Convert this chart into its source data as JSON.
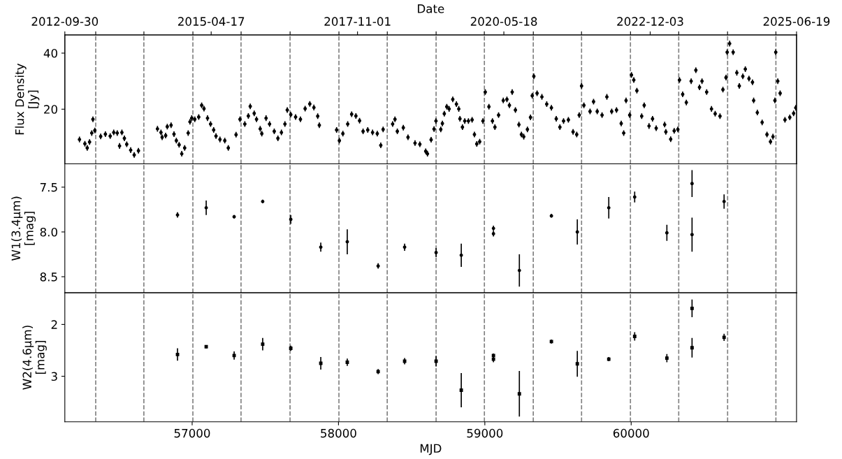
{
  "chart_data": [
    {
      "type": "scatter",
      "ylabel": "Flux Density\n[Jy]",
      "x2label": "Date",
      "marker": "circle",
      "tick_labels": "y",
      "xlim": [
        56130,
        61130
      ],
      "xticks": [
        57000,
        58000,
        59000,
        60000
      ],
      "x2lim": [
        "2012-09-30",
        "2025-06-19"
      ],
      "x2ticks": [
        {
          "value": "2012-09-30",
          "label": "2012-09-30"
        },
        {
          "value": "2013-04-14",
          "label": null
        },
        {
          "value": "2014-02-14",
          "label": null
        },
        {
          "value": "2014-12-22",
          "label": null
        },
        {
          "value": "2015-04-17",
          "label": "2015-04-17"
        },
        {
          "value": "2015-10-24",
          "label": null
        },
        {
          "value": "2016-08-30",
          "label": null
        },
        {
          "value": "2017-07-06",
          "label": null
        },
        {
          "value": "2017-11-01",
          "label": "2017-11-01"
        },
        {
          "value": "2018-05-09",
          "label": null
        },
        {
          "value": "2019-03-15",
          "label": null
        },
        {
          "value": "2020-01-15",
          "label": null
        },
        {
          "value": "2020-05-18",
          "label": "2020-05-18"
        },
        {
          "value": "2020-11-21",
          "label": null
        },
        {
          "value": "2021-09-23",
          "label": null
        },
        {
          "value": "2022-07-31",
          "label": null
        },
        {
          "value": "2022-12-03",
          "label": "2022-12-03"
        },
        {
          "value": "2023-06-02",
          "label": null
        },
        {
          "value": "2024-04-07",
          "label": null
        },
        {
          "value": "2025-02-08",
          "label": null
        },
        {
          "value": "2025-06-19",
          "label": "2025-06-19"
        }
      ],
      "ylim": [
        0.5,
        46.5
      ],
      "yticks": [
        20,
        40
      ],
      "ref_lines": [
        {
          "axis": "x",
          "value": 56341,
          "color": "#808080",
          "line_style": "dashed"
        },
        {
          "axis": "x",
          "value": 56670,
          "color": "#808080",
          "line_style": "dashed"
        },
        {
          "axis": "x",
          "value": 57005,
          "color": "#808080",
          "line_style": "dashed"
        },
        {
          "axis": "x",
          "value": 57334,
          "color": "#808080",
          "line_style": "dashed"
        },
        {
          "axis": "x",
          "value": 57669,
          "color": "#808080",
          "line_style": "dashed"
        },
        {
          "axis": "x",
          "value": 58003,
          "color": "#808080",
          "line_style": "dashed"
        },
        {
          "axis": "x",
          "value": 58333,
          "color": "#808080",
          "line_style": "dashed"
        },
        {
          "axis": "x",
          "value": 58667,
          "color": "#808080",
          "line_style": "dashed"
        },
        {
          "axis": "x",
          "value": 58997,
          "color": "#808080",
          "line_style": "dashed"
        },
        {
          "axis": "x",
          "value": 59331,
          "color": "#808080",
          "line_style": "dashed"
        },
        {
          "axis": "x",
          "value": 59661,
          "color": "#808080",
          "line_style": "dashed"
        },
        {
          "axis": "x",
          "value": 59995,
          "color": "#808080",
          "line_style": "dashed"
        },
        {
          "axis": "x",
          "value": 60325,
          "color": "#808080",
          "line_style": "dashed"
        },
        {
          "axis": "x",
          "value": 60659,
          "color": "#808080",
          "line_style": "dashed"
        },
        {
          "axis": "x",
          "value": 60989,
          "color": "#808080",
          "line_style": "dashed"
        }
      ],
      "series": [
        {
          "color": "#000000",
          "x": [
            56230,
            56267,
            56283,
            56299,
            56314,
            56322,
            56335,
            56375,
            56407,
            56440,
            56464,
            56488,
            56504,
            56520,
            56537,
            56553,
            56580,
            56604,
            56633,
            56763,
            56787,
            56795,
            56819,
            56830,
            56856,
            56876,
            56892,
            56911,
            56929,
            56949,
            56973,
            56985,
            56997,
            57018,
            57045,
            57065,
            57081,
            57105,
            57126,
            57147,
            57163,
            57190,
            57223,
            57247,
            57300,
            57327,
            57360,
            57384,
            57397,
            57424,
            57440,
            57465,
            57476,
            57505,
            57529,
            57561,
            57586,
            57610,
            57634,
            57650,
            57674,
            57707,
            57740,
            57772,
            57804,
            57832,
            57858,
            57869,
            57987,
            58006,
            58030,
            58063,
            58090,
            58119,
            58144,
            58168,
            58200,
            58233,
            58265,
            58289,
            58305,
            58370,
            58386,
            58402,
            58443,
            58475,
            58523,
            58556,
            58596,
            58608,
            58633,
            58653,
            58666,
            58699,
            58710,
            58723,
            58740,
            58756,
            58781,
            58806,
            58822,
            58830,
            58847,
            58863,
            58888,
            58913,
            58929,
            58945,
            58965,
            58987,
            59003,
            59028,
            59052,
            59069,
            59094,
            59126,
            59151,
            59168,
            59187,
            59209,
            59233,
            59250,
            59266,
            59291,
            59312,
            59324,
            59335,
            59357,
            59390,
            59423,
            59455,
            59488,
            59513,
            59538,
            59571,
            59603,
            59628,
            59645,
            59661,
            59677,
            59719,
            59743,
            59768,
            59801,
            59834,
            59867,
            59900,
            59932,
            59949,
            59965,
            59990,
            60002,
            60018,
            60039,
            60072,
            60089,
            60122,
            60146,
            60171,
            60229,
            60237,
            60270,
            60294,
            60319,
            60330,
            60352,
            60377,
            60410,
            60442,
            60467,
            60484,
            60516,
            60549,
            60574,
            60607,
            60627,
            60648,
            60656,
            60673,
            60697,
            60722,
            60739,
            60763,
            60780,
            60805,
            60829,
            60837,
            60862,
            60895,
            60928,
            60952,
            60969,
            60982,
            60988,
            61002,
            61018,
            61051,
            61084,
            61110,
            61125
          ],
          "values": [
            9.2,
            7.7,
            6.2,
            8.3,
            11.5,
            16.4,
            12.4,
            10.3,
            11.1,
            10.4,
            11.7,
            11.5,
            6.9,
            11.7,
            9.6,
            7.5,
            5.4,
            3.7,
            5.2,
            13,
            11.7,
            10,
            10.6,
            13.8,
            14.3,
            11.1,
            8.8,
            7.3,
            4.1,
            6.2,
            11.5,
            15.5,
            16.8,
            16.4,
            17.2,
            21.4,
            20.2,
            16.8,
            14.7,
            12.6,
            10.4,
            9.2,
            8.8,
            6.2,
            10.9,
            16.4,
            14.7,
            17.6,
            21,
            18.5,
            16.4,
            13,
            11.3,
            16.8,
            14.7,
            12.1,
            9.6,
            11.7,
            14.7,
            19.7,
            18.1,
            17.2,
            16.4,
            20.2,
            21.9,
            20.6,
            17.5,
            14.3,
            12.6,
            8.8,
            11.3,
            14.7,
            18.2,
            17.6,
            15.9,
            12.1,
            12.6,
            11.7,
            11.3,
            7.1,
            12.8,
            14.7,
            16.4,
            12.1,
            13.4,
            10,
            7.9,
            7.5,
            5,
            4.1,
            9.1,
            12.9,
            15.8,
            12.8,
            14.9,
            18.4,
            20.9,
            20.1,
            23.5,
            21.8,
            20.1,
            16.6,
            13.6,
            15.8,
            15.8,
            16.2,
            11,
            7.6,
            8.4,
            15.8,
            26.1,
            20.9,
            15.8,
            13.6,
            17.9,
            23.1,
            23.5,
            21.4,
            26.1,
            19.7,
            14.5,
            11,
            10.2,
            12.8,
            17.1,
            24.8,
            31.7,
            25.7,
            24.4,
            21.8,
            20.5,
            16.6,
            13.6,
            15.8,
            16.2,
            11.9,
            11,
            17.9,
            28.3,
            21.4,
            19.2,
            22.7,
            19.2,
            17.9,
            24.4,
            19.2,
            19.7,
            14.9,
            11.5,
            23.1,
            17.9,
            32.2,
            30.4,
            26.6,
            17.5,
            21.4,
            14,
            16.6,
            13.2,
            14.5,
            11.9,
            9.3,
            12.3,
            12.8,
            30.4,
            25.3,
            22.4,
            30,
            33.9,
            27.8,
            30,
            26.1,
            20.1,
            18.4,
            17.5,
            27,
            31.3,
            40.3,
            43.4,
            40.3,
            33,
            28.3,
            31.7,
            34.3,
            30.9,
            29.6,
            23.1,
            18.8,
            15.3,
            11,
            8.4,
            10.2,
            23.1,
            40.3,
            30,
            25.7,
            16.2,
            17.1,
            18.5,
            20.5
          ],
          "errors": [
            1,
            1,
            1,
            1,
            1,
            1,
            1,
            1,
            1,
            1,
            1,
            1,
            1,
            1,
            1,
            1,
            1,
            1,
            1,
            1,
            1,
            1,
            1,
            1,
            1,
            1,
            1,
            1,
            1,
            1,
            1,
            1,
            1,
            1,
            1,
            1,
            1,
            1,
            1,
            1,
            1,
            1,
            1,
            1,
            1,
            1,
            1,
            1,
            1,
            1,
            1,
            1,
            1,
            1,
            1,
            1,
            1,
            1,
            1,
            1,
            1,
            1,
            1,
            1,
            1,
            1,
            1,
            1,
            1,
            1,
            1,
            1,
            1,
            1,
            1,
            1,
            1,
            1,
            1,
            1,
            1,
            1,
            1,
            1,
            1,
            1,
            1,
            1,
            1,
            1,
            1,
            1,
            1,
            1,
            1,
            1,
            1,
            1,
            1,
            1,
            1,
            1,
            1,
            1,
            1,
            1,
            1,
            1,
            1,
            1,
            1,
            1,
            1,
            1,
            1,
            1,
            1,
            1,
            1,
            1,
            1,
            1,
            1,
            1,
            1,
            1,
            1,
            1,
            1,
            1,
            1,
            1,
            1,
            1,
            1,
            1,
            1,
            1,
            1,
            1,
            1,
            1,
            1,
            1,
            1,
            1,
            1,
            1,
            1,
            1,
            1,
            1,
            1,
            1,
            1,
            1,
            1,
            1,
            1,
            1,
            1,
            1,
            1,
            1,
            1,
            1,
            1,
            1,
            1,
            1,
            1,
            1,
            1,
            1,
            1,
            1,
            1,
            1,
            1,
            1,
            1,
            1,
            1,
            1,
            1,
            1,
            1,
            1,
            1,
            1,
            1,
            1,
            1,
            1,
            1,
            1,
            1,
            1,
            1,
            1
          ]
        }
      ]
    },
    {
      "type": "scatter",
      "ylabel": "W1(3.4μm)\n[mag]",
      "marker": "circle",
      "tick_labels": "y",
      "xlim": [
        56130,
        61130
      ],
      "xticks": [
        57000,
        58000,
        59000,
        60000
      ],
      "ylim": [
        8.68,
        7.24
      ],
      "yticks": [
        {
          "value": 7.5,
          "label": "7.5"
        },
        {
          "value": 8.0,
          "label": "8.0"
        },
        {
          "value": 8.5,
          "label": "8.5"
        }
      ],
      "ref_lines": [
        {
          "axis": "x",
          "value": 56341,
          "color": "#808080",
          "line_style": "dashed"
        },
        {
          "axis": "x",
          "value": 56670,
          "color": "#808080",
          "line_style": "dashed"
        },
        {
          "axis": "x",
          "value": 57005,
          "color": "#808080",
          "line_style": "dashed"
        },
        {
          "axis": "x",
          "value": 57334,
          "color": "#808080",
          "line_style": "dashed"
        },
        {
          "axis": "x",
          "value": 57669,
          "color": "#808080",
          "line_style": "dashed"
        },
        {
          "axis": "x",
          "value": 58003,
          "color": "#808080",
          "line_style": "dashed"
        },
        {
          "axis": "x",
          "value": 58333,
          "color": "#808080",
          "line_style": "dashed"
        },
        {
          "axis": "x",
          "value": 58667,
          "color": "#808080",
          "line_style": "dashed"
        },
        {
          "axis": "x",
          "value": 58997,
          "color": "#808080",
          "line_style": "dashed"
        },
        {
          "axis": "x",
          "value": 59331,
          "color": "#808080",
          "line_style": "dashed"
        },
        {
          "axis": "x",
          "value": 59661,
          "color": "#808080",
          "line_style": "dashed"
        },
        {
          "axis": "x",
          "value": 59995,
          "color": "#808080",
          "line_style": "dashed"
        },
        {
          "axis": "x",
          "value": 60325,
          "color": "#808080",
          "line_style": "dashed"
        },
        {
          "axis": "x",
          "value": 60659,
          "color": "#808080",
          "line_style": "dashed"
        },
        {
          "axis": "x",
          "value": 60989,
          "color": "#808080",
          "line_style": "dashed"
        }
      ],
      "series": [
        {
          "color": "#000000",
          "x": [
            56900,
            57096,
            57287,
            57482,
            57674,
            57879,
            58060,
            58271,
            58452,
            58667,
            58839,
            59059,
            59059,
            59236,
            59455,
            59632,
            59847,
            60024,
            60244,
            60416,
            60416,
            60635
          ],
          "values": [
            7.81,
            7.73,
            7.83,
            7.66,
            7.86,
            8.17,
            8.11,
            8.38,
            8.17,
            8.23,
            8.26,
            7.96,
            8.02,
            8.43,
            7.82,
            8.0,
            7.73,
            7.61,
            8.01,
            7.46,
            8.03,
            7.66
          ],
          "errors": [
            0.03,
            0.08,
            0.02,
            0.02,
            0.05,
            0.05,
            0.14,
            0.03,
            0.04,
            0.05,
            0.13,
            0.03,
            0.03,
            0.18,
            0.02,
            0.14,
            0.12,
            0.06,
            0.09,
            0.15,
            0.19,
            0.08
          ]
        }
      ]
    },
    {
      "type": "scatter",
      "ylabel": "W2(4.6μm)\n[mag]",
      "xlabel": "MJD",
      "marker": "square",
      "xlim": [
        56130,
        61130
      ],
      "xticks": [
        57000,
        58000,
        59000,
        60000
      ],
      "ylim": [
        3.88,
        1.39
      ],
      "yticks": [
        2,
        3
      ],
      "ref_lines": [
        {
          "axis": "x",
          "value": 56341,
          "color": "#808080",
          "line_style": "dashed"
        },
        {
          "axis": "x",
          "value": 56670,
          "color": "#808080",
          "line_style": "dashed"
        },
        {
          "axis": "x",
          "value": 57005,
          "color": "#808080",
          "line_style": "dashed"
        },
        {
          "axis": "x",
          "value": 57334,
          "color": "#808080",
          "line_style": "dashed"
        },
        {
          "axis": "x",
          "value": 57669,
          "color": "#808080",
          "line_style": "dashed"
        },
        {
          "axis": "x",
          "value": 58003,
          "color": "#808080",
          "line_style": "dashed"
        },
        {
          "axis": "x",
          "value": 58333,
          "color": "#808080",
          "line_style": "dashed"
        },
        {
          "axis": "x",
          "value": 58667,
          "color": "#808080",
          "line_style": "dashed"
        },
        {
          "axis": "x",
          "value": 58997,
          "color": "#808080",
          "line_style": "dashed"
        },
        {
          "axis": "x",
          "value": 59331,
          "color": "#808080",
          "line_style": "dashed"
        },
        {
          "axis": "x",
          "value": 59661,
          "color": "#808080",
          "line_style": "dashed"
        },
        {
          "axis": "x",
          "value": 59995,
          "color": "#808080",
          "line_style": "dashed"
        },
        {
          "axis": "x",
          "value": 60325,
          "color": "#808080",
          "line_style": "dashed"
        },
        {
          "axis": "x",
          "value": 60659,
          "color": "#808080",
          "line_style": "dashed"
        },
        {
          "axis": "x",
          "value": 60989,
          "color": "#808080",
          "line_style": "dashed"
        }
      ],
      "series": [
        {
          "color": "#000000",
          "x": [
            56900,
            57096,
            57287,
            57482,
            57674,
            57879,
            58060,
            58271,
            58452,
            58667,
            58839,
            59059,
            59059,
            59236,
            59455,
            59632,
            59847,
            60024,
            60244,
            60416,
            60416,
            60635
          ],
          "values": [
            2.58,
            2.43,
            2.6,
            2.38,
            2.46,
            2.75,
            2.73,
            2.91,
            2.71,
            2.71,
            3.27,
            2.6,
            2.67,
            3.34,
            2.33,
            2.76,
            2.67,
            2.23,
            2.65,
            1.69,
            2.45,
            2.25
          ],
          "errors": [
            0.12,
            0.03,
            0.08,
            0.12,
            0.05,
            0.12,
            0.07,
            0.05,
            0.06,
            0.1,
            0.33,
            0.04,
            0.06,
            0.44,
            0.04,
            0.25,
            0.04,
            0.08,
            0.08,
            0.17,
            0.19,
            0.07
          ]
        }
      ]
    }
  ]
}
